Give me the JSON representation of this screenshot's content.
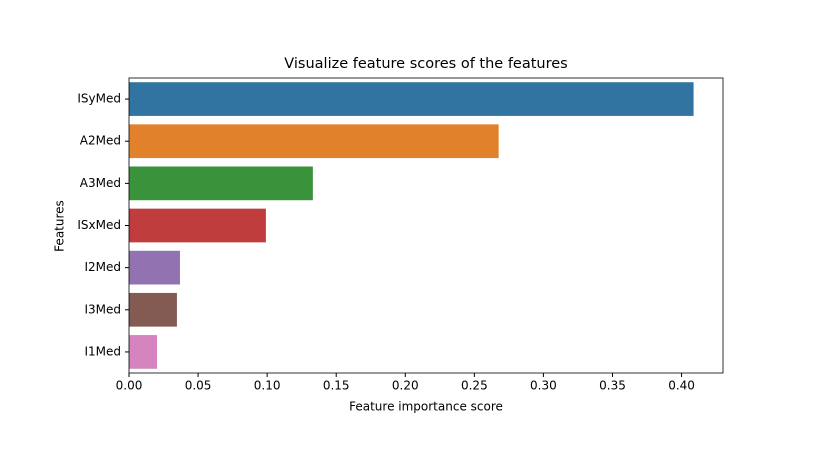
{
  "chart_data": {
    "type": "barh",
    "title": "Visualize feature scores of the features",
    "xlabel": "Feature importance score",
    "ylabel": "Features",
    "categories": [
      "ISyMed",
      "A2Med",
      "A3Med",
      "ISxMed",
      "I2Med",
      "I3Med",
      "I1Med"
    ],
    "values": [
      0.4087,
      0.2676,
      0.1331,
      0.0991,
      0.0369,
      0.0347,
      0.0203
    ],
    "colors": [
      "#3274a1",
      "#e1812c",
      "#3a923a",
      "#c03d3e",
      "#9372b2",
      "#845b53",
      "#d684bd"
    ],
    "xlim": [
      0,
      0.43
    ],
    "xticks": [
      {
        "value": 0,
        "label": "0.00"
      },
      {
        "value": 0.05,
        "label": "0.05"
      },
      {
        "value": 0.1,
        "label": "0.10"
      },
      {
        "value": 0.15,
        "label": "0.15"
      },
      {
        "value": 0.2,
        "label": "0.20"
      },
      {
        "value": 0.25,
        "label": "0.25"
      },
      {
        "value": 0.3,
        "label": "0.30"
      },
      {
        "value": 0.35,
        "label": "0.35"
      },
      {
        "value": 0.4,
        "label": "0.40"
      }
    ],
    "grid": false
  }
}
